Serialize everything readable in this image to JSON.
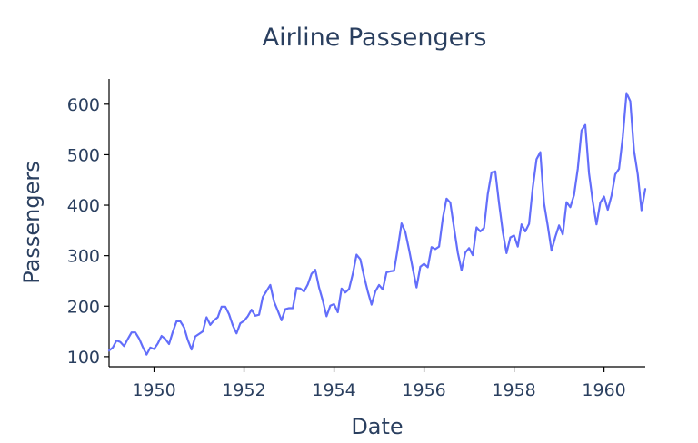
{
  "chart_data": {
    "type": "line",
    "title": "Airline Passengers",
    "xlabel": "Date",
    "ylabel": "Passengers",
    "x_start": "1949-01",
    "x_end": "1960-12",
    "xlim": [
      "1949-01",
      "1960-12"
    ],
    "ylim": [
      80,
      650
    ],
    "x_ticks": [
      1950,
      1952,
      1954,
      1956,
      1958,
      1960
    ],
    "y_ticks": [
      100,
      200,
      300,
      400,
      500,
      600
    ],
    "grid": false,
    "legend": "none",
    "series": [
      {
        "color": "#636efa",
        "values": [
          112,
          118,
          132,
          129,
          121,
          135,
          148,
          148,
          136,
          119,
          104,
          118,
          115,
          126,
          141,
          135,
          125,
          149,
          170,
          170,
          158,
          133,
          114,
          140,
          145,
          150,
          178,
          163,
          172,
          178,
          199,
          199,
          184,
          162,
          146,
          166,
          171,
          180,
          193,
          181,
          183,
          218,
          230,
          242,
          209,
          191,
          172,
          194,
          196,
          196,
          236,
          235,
          229,
          243,
          264,
          272,
          237,
          211,
          180,
          201,
          204,
          188,
          235,
          227,
          234,
          264,
          302,
          293,
          259,
          229,
          203,
          229,
          242,
          233,
          267,
          269,
          270,
          315,
          364,
          347,
          312,
          274,
          237,
          278,
          284,
          277,
          317,
          313,
          318,
          374,
          413,
          405,
          355,
          306,
          271,
          306,
          315,
          301,
          356,
          348,
          355,
          422,
          465,
          467,
          404,
          347,
          305,
          336,
          340,
          318,
          362,
          348,
          363,
          435,
          491,
          505,
          404,
          359,
          310,
          337,
          360,
          342,
          406,
          396,
          420,
          472,
          548,
          559,
          463,
          407,
          362,
          405,
          417,
          391,
          419,
          461,
          472,
          535,
          622,
          606,
          508,
          461,
          390,
          432
        ]
      }
    ]
  }
}
